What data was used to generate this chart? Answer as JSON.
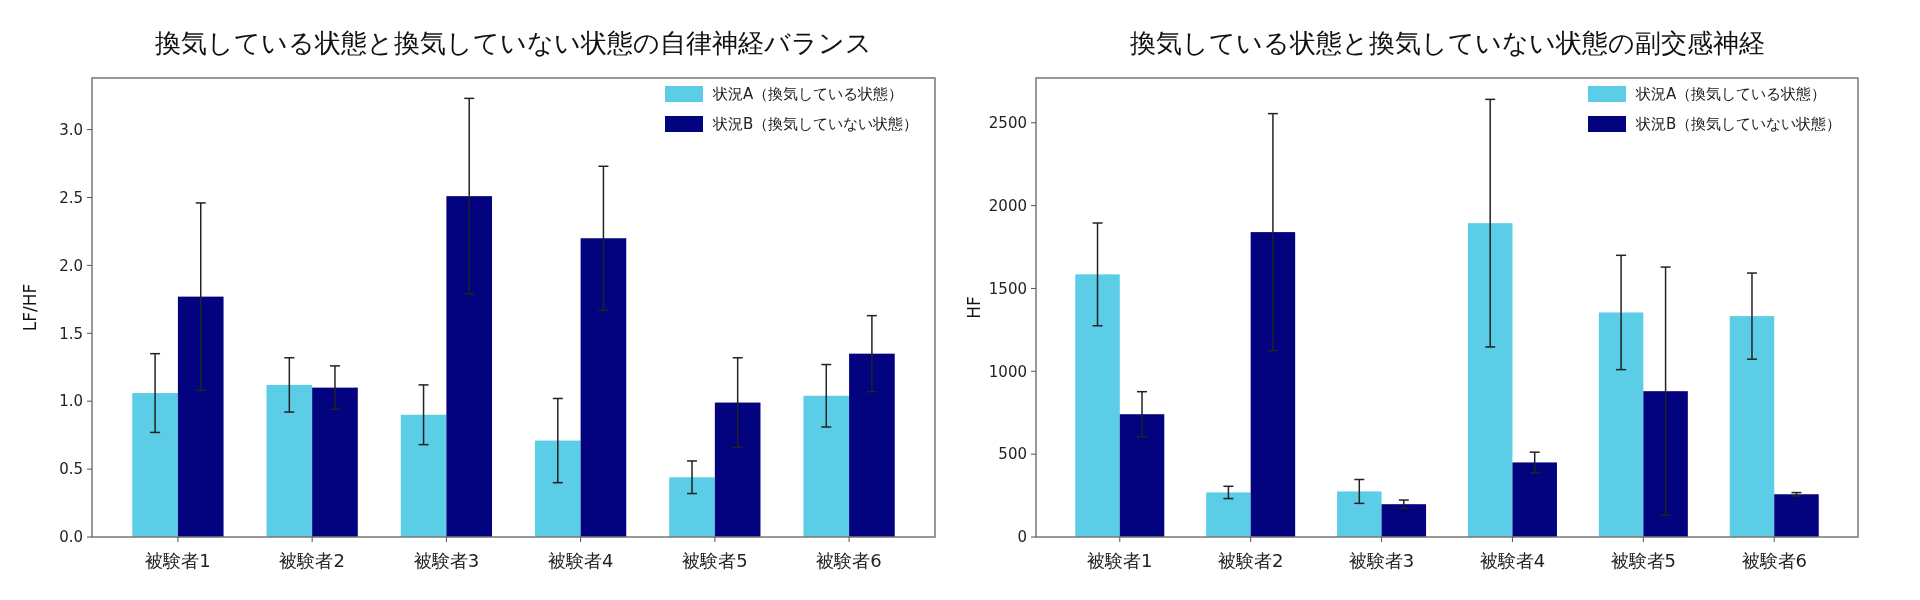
{
  "chart_data": [
    {
      "type": "bar",
      "title": "換気している状態と換気していない状態の自律神経バランス",
      "ylabel": "LF/HF",
      "categories": [
        "被験者1",
        "被験者2",
        "被験者3",
        "被験者4",
        "被験者5",
        "被験者6"
      ],
      "ylim": [
        0,
        3.38
      ],
      "yticks": [
        {
          "value": 0,
          "label": "0.0"
        },
        0.5,
        {
          "value": 1,
          "label": "1.0"
        },
        1.5,
        {
          "value": 2,
          "label": "2.0"
        },
        2.5,
        {
          "value": 3,
          "label": "3.0"
        }
      ],
      "legend": "top right",
      "grid": false,
      "series": [
        {
          "name": "状況A（換気している状態）",
          "color": "#5bcde6",
          "values": [
            1.06,
            1.12,
            0.9,
            0.71,
            0.44,
            1.04
          ],
          "errors": [
            0.29,
            0.2,
            0.22,
            0.31,
            0.12,
            0.23
          ]
        },
        {
          "name": "状況B（換気していない状態）",
          "color": "#03037f",
          "values": [
            1.77,
            1.1,
            2.51,
            2.2,
            0.99,
            1.35
          ],
          "errors": [
            0.69,
            0.16,
            0.72,
            0.53,
            0.33,
            0.28
          ]
        }
      ]
    },
    {
      "type": "bar",
      "title": "換気している状態と換気していない状態の副交感神経",
      "ylabel": "HF",
      "categories": [
        "被験者1",
        "被験者2",
        "被験者3",
        "被験者4",
        "被験者5",
        "被験者6"
      ],
      "ylim": [
        0,
        2770
      ],
      "yticks": [
        0,
        500,
        1000,
        1500,
        2000,
        2500
      ],
      "legend": "top right",
      "grid": false,
      "series": [
        {
          "name": "状況A（換気している状態）",
          "color": "#5bcde6",
          "values": [
            1585,
            269,
            275,
            1894,
            1355,
            1333
          ],
          "errors": [
            310,
            37,
            72,
            747,
            345,
            260
          ]
        },
        {
          "name": "状況B（換気していない状態）",
          "color": "#03037f",
          "values": [
            741,
            1840,
            198,
            450,
            880,
            258
          ],
          "errors": [
            136,
            715,
            25,
            62,
            749,
            10
          ]
        }
      ]
    }
  ]
}
